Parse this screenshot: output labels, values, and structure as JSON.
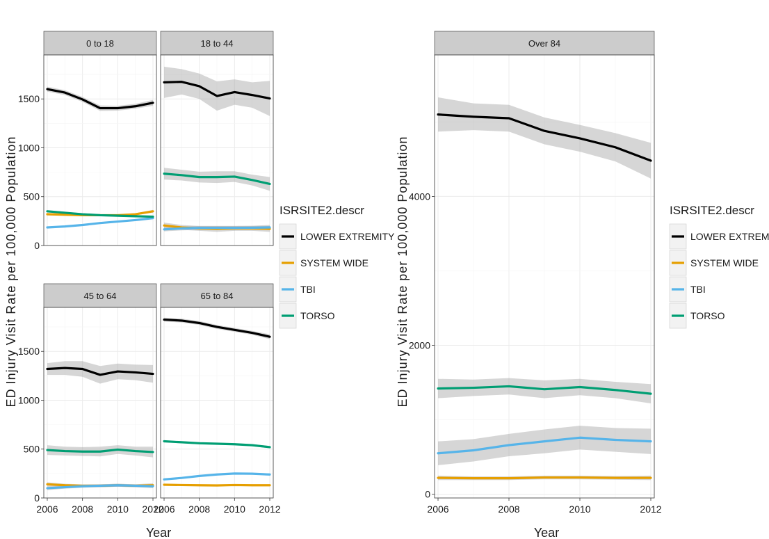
{
  "chart_data": [
    {
      "type": "line",
      "layout": "facet-grid",
      "xlabel": "Year",
      "ylabel": "ED Injury Visit Rate per 100,000 Population",
      "xlim": [
        2006,
        2012
      ],
      "ylim": [
        0,
        1950
      ],
      "x_ticks": [
        2006,
        2008,
        2010,
        2012
      ],
      "x_tick_labels": [
        "2006",
        "2008",
        "2010",
        "2012"
      ],
      "y_ticks": [
        0,
        500,
        1000,
        1500
      ],
      "y_tick_labels": [
        "0",
        "500",
        "1000",
        "1500"
      ],
      "grid": true,
      "legend": {
        "title": "ISRSITE2.descr",
        "placement": "right"
      },
      "x": [
        2006,
        2007,
        2008,
        2009,
        2010,
        2011,
        2012
      ],
      "panels": [
        {
          "title": "0 to 18",
          "series": [
            {
              "name": "LOWER EXTREMITY",
              "values": [
                1600,
                1565,
                1495,
                1405,
                1405,
                1425,
                1460
              ],
              "ci": [
                25,
                25,
                25,
                28,
                25,
                25,
                30
              ]
            },
            {
              "name": "SYSTEM WIDE",
              "values": [
                320,
                315,
                310,
                310,
                310,
                320,
                350
              ],
              "ci": [
                12,
                10,
                10,
                10,
                10,
                10,
                15
              ]
            },
            {
              "name": "TBI",
              "values": [
                185,
                195,
                210,
                230,
                245,
                260,
                280
              ],
              "ci": [
                8,
                8,
                8,
                8,
                8,
                8,
                10
              ]
            },
            {
              "name": "TORSO",
              "values": [
                350,
                335,
                320,
                310,
                305,
                300,
                295
              ],
              "ci": [
                12,
                10,
                10,
                10,
                10,
                10,
                12
              ]
            }
          ]
        },
        {
          "title": "18 to 44",
          "series": [
            {
              "name": "LOWER EXTREMITY",
              "values": [
                1670,
                1675,
                1630,
                1530,
                1570,
                1540,
                1505
              ],
              "ci": [
                160,
                130,
                130,
                150,
                130,
                130,
                180
              ]
            },
            {
              "name": "SYSTEM WIDE",
              "values": [
                205,
                185,
                175,
                170,
                175,
                175,
                170
              ],
              "ci": [
                30,
                25,
                25,
                30,
                25,
                25,
                30
              ]
            },
            {
              "name": "TBI",
              "values": [
                165,
                175,
                180,
                180,
                180,
                182,
                185
              ],
              "ci": [
                20,
                20,
                20,
                20,
                20,
                20,
                25
              ]
            },
            {
              "name": "TORSO",
              "values": [
                735,
                720,
                700,
                700,
                705,
                670,
                630
              ],
              "ci": [
                60,
                55,
                55,
                60,
                55,
                55,
                70
              ]
            }
          ]
        },
        {
          "title": "45 to 64",
          "series": [
            {
              "name": "LOWER EXTREMITY",
              "values": [
                1320,
                1330,
                1320,
                1260,
                1295,
                1285,
                1270
              ],
              "ci": [
                60,
                70,
                80,
                90,
                80,
                80,
                90
              ]
            },
            {
              "name": "SYSTEM WIDE",
              "values": [
                140,
                130,
                125,
                125,
                130,
                125,
                130
              ],
              "ci": [
                20,
                15,
                15,
                15,
                15,
                15,
                20
              ]
            },
            {
              "name": "TBI",
              "values": [
                100,
                110,
                120,
                125,
                130,
                125,
                120
              ],
              "ci": [
                20,
                15,
                15,
                15,
                15,
                15,
                20
              ]
            },
            {
              "name": "TORSO",
              "values": [
                490,
                480,
                475,
                475,
                495,
                480,
                470
              ],
              "ci": [
                50,
                45,
                45,
                50,
                45,
                45,
                55
              ]
            }
          ]
        },
        {
          "title": "65 to 84",
          "series": [
            {
              "name": "LOWER EXTREMITY",
              "values": [
                1825,
                1815,
                1790,
                1750,
                1720,
                1690,
                1650
              ],
              "ci": [
                20,
                20,
                20,
                20,
                20,
                20,
                25
              ]
            },
            {
              "name": "SYSTEM WIDE",
              "values": [
                135,
                132,
                130,
                128,
                132,
                130,
                130
              ],
              "ci": [
                8,
                8,
                8,
                8,
                8,
                8,
                8
              ]
            },
            {
              "name": "TBI",
              "values": [
                190,
                205,
                225,
                240,
                250,
                248,
                240
              ],
              "ci": [
                8,
                8,
                8,
                8,
                8,
                8,
                10
              ]
            },
            {
              "name": "TORSO",
              "values": [
                580,
                570,
                560,
                555,
                550,
                540,
                520
              ],
              "ci": [
                10,
                10,
                10,
                10,
                10,
                10,
                12
              ]
            }
          ]
        }
      ]
    },
    {
      "type": "line",
      "xlabel": "Year",
      "ylabel": "ED Injury Visit Rate per 100,000 Population",
      "xlim": [
        2006,
        2012
      ],
      "ylim": [
        -50,
        5900
      ],
      "x_ticks": [
        2006,
        2008,
        2010,
        2012
      ],
      "x_tick_labels": [
        "2006",
        "2008",
        "2010",
        "2012"
      ],
      "y_ticks": [
        0,
        2000,
        4000
      ],
      "y_tick_labels": [
        "0",
        "2000",
        "4000"
      ],
      "grid": true,
      "legend": {
        "title": "ISRSITE2.descr",
        "placement": "right"
      },
      "x": [
        2006,
        2007,
        2008,
        2009,
        2010,
        2011,
        2012
      ],
      "panels": [
        {
          "title": "Over 84",
          "series": [
            {
              "name": "LOWER EXTREMITY",
              "values": [
                5100,
                5070,
                5050,
                4880,
                4780,
                4660,
                4480
              ],
              "ci": [
                230,
                180,
                180,
                180,
                180,
                190,
                240
              ]
            },
            {
              "name": "SYSTEM WIDE",
              "values": [
                220,
                215,
                215,
                225,
                225,
                220,
                220
              ],
              "ci": [
                30,
                25,
                25,
                25,
                25,
                25,
                30
              ]
            },
            {
              "name": "TBI",
              "values": [
                550,
                590,
                660,
                710,
                760,
                730,
                710
              ],
              "ci": [
                160,
                150,
                150,
                160,
                160,
                160,
                170
              ]
            },
            {
              "name": "TORSO",
              "values": [
                1420,
                1430,
                1450,
                1410,
                1440,
                1400,
                1350
              ],
              "ci": [
                130,
                110,
                110,
                120,
                110,
                110,
                130
              ]
            }
          ]
        }
      ]
    }
  ],
  "series_colors": {
    "LOWER EXTREMITY": "#000000",
    "SYSTEM WIDE": "#E69F00",
    "TBI": "#56B4E9",
    "TORSO": "#009E73"
  },
  "ci_color": "#999999",
  "strip_color": "#CCCCCC",
  "grid_color": "#EBEBEB"
}
